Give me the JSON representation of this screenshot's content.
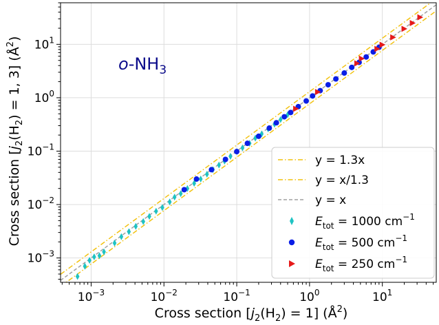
{
  "chart_data": {
    "type": "scatter",
    "xlabel": {
      "main": "Cross section [",
      "j": "j",
      "sub2": "2",
      "mid": "(H",
      "sub2b": "2",
      "end": ") = 1] (Å",
      "sup": "2",
      "close": ")"
    },
    "ylabel": {
      "main": "Cross section [",
      "j": "j",
      "sub2": "2",
      "mid": "(H",
      "sub2b": "2",
      "end": ") = 1, 3] (Å",
      "sup": "2",
      "close": ")"
    },
    "xscale": "log",
    "yscale": "log",
    "xlim": [
      0.00038,
      55
    ],
    "ylim": [
      0.00035,
      60
    ],
    "xticks": [
      0.001,
      0.01,
      0.1,
      1,
      10
    ],
    "xtick_labels": [
      {
        "base": "10",
        "exp": "−3"
      },
      {
        "base": "10",
        "exp": "−2"
      },
      {
        "base": "10",
        "exp": "−1"
      },
      {
        "base": "10",
        "exp": "0"
      },
      {
        "base": "10",
        "exp": "1"
      }
    ],
    "yticks": [
      0.001,
      0.01,
      0.1,
      1,
      10
    ],
    "ytick_labels": [
      {
        "base": "10",
        "exp": "−3"
      },
      {
        "base": "10",
        "exp": "−2"
      },
      {
        "base": "10",
        "exp": "−1"
      },
      {
        "base": "10",
        "exp": "0"
      },
      {
        "base": "10",
        "exp": "1"
      }
    ],
    "grid": true,
    "legend_position": "lower-right",
    "annotation": {
      "prefix": "o",
      "text": "-NH",
      "sub": "3"
    },
    "reference_lines": [
      {
        "name": "y = 1.3x",
        "factor": 1.3,
        "color": "#f2c20f",
        "style": "dashdot"
      },
      {
        "name": "y = x/1.3",
        "factor": 0.769,
        "color": "#f2c20f",
        "style": "dashdot"
      },
      {
        "name": "y = x",
        "factor": 1.0,
        "color": "#a0a0a0",
        "style": "dashed"
      }
    ],
    "series": [
      {
        "name": "E_tot = 1000 cm^-1",
        "legend": {
          "e": "E",
          "sub": "tot",
          "eq": " = 1000 cm",
          "sup": "−1"
        },
        "marker": "diamond",
        "color": "#1fc3c3",
        "x": [
          0.00065,
          0.00082,
          0.00095,
          0.0011,
          0.0013,
          0.0015,
          0.0021,
          0.0026,
          0.0033,
          0.0041,
          0.0052,
          0.0063,
          0.0078,
          0.0095,
          0.012,
          0.014,
          0.017,
          0.021,
          0.026,
          0.032,
          0.039,
          0.047,
          0.057,
          0.068,
          0.082,
          0.1,
          0.12,
          0.15,
          0.18,
          0.22,
          0.27,
          0.33,
          0.4,
          0.5
        ],
        "y": [
          0.00045,
          0.0007,
          0.0009,
          0.00105,
          0.0011,
          0.0013,
          0.0019,
          0.0025,
          0.0031,
          0.0039,
          0.0048,
          0.006,
          0.0075,
          0.0088,
          0.0112,
          0.0138,
          0.016,
          0.02,
          0.025,
          0.03,
          0.037,
          0.045,
          0.055,
          0.065,
          0.08,
          0.098,
          0.115,
          0.14,
          0.175,
          0.21,
          0.26,
          0.32,
          0.39,
          0.48
        ]
      },
      {
        "name": "E_tot = 500 cm^-1",
        "legend": {
          "e": "E",
          "sub": "tot",
          "eq": " = 500 cm",
          "sup": "−1"
        },
        "marker": "circle",
        "color": "#0a1ee6",
        "x": [
          0.019,
          0.028,
          0.045,
          0.07,
          0.1,
          0.14,
          0.2,
          0.28,
          0.35,
          0.45,
          0.55,
          0.7,
          0.9,
          1.1,
          1.4,
          1.8,
          2.3,
          3.0,
          3.8,
          4.8,
          6.0,
          7.5,
          9.0
        ],
        "y": [
          0.019,
          0.03,
          0.045,
          0.07,
          0.098,
          0.14,
          0.19,
          0.27,
          0.34,
          0.44,
          0.53,
          0.68,
          0.87,
          1.08,
          1.36,
          1.75,
          2.25,
          2.9,
          3.7,
          4.6,
          5.8,
          7.2,
          8.8
        ]
      },
      {
        "name": "E_tot = 250 cm^-1",
        "legend": {
          "e": "E",
          "sub": "tot",
          "eq": " = 250 cm",
          "sup": "−1"
        },
        "marker": "triangle-right",
        "color": "#e61a1a",
        "x": [
          0.65,
          1.3,
          4.5,
          5.2,
          8.5,
          10,
          14,
          20,
          26,
          33
        ],
        "y": [
          0.62,
          1.28,
          4.4,
          5.4,
          8.2,
          9.8,
          13.5,
          19.5,
          25,
          32
        ]
      }
    ]
  }
}
